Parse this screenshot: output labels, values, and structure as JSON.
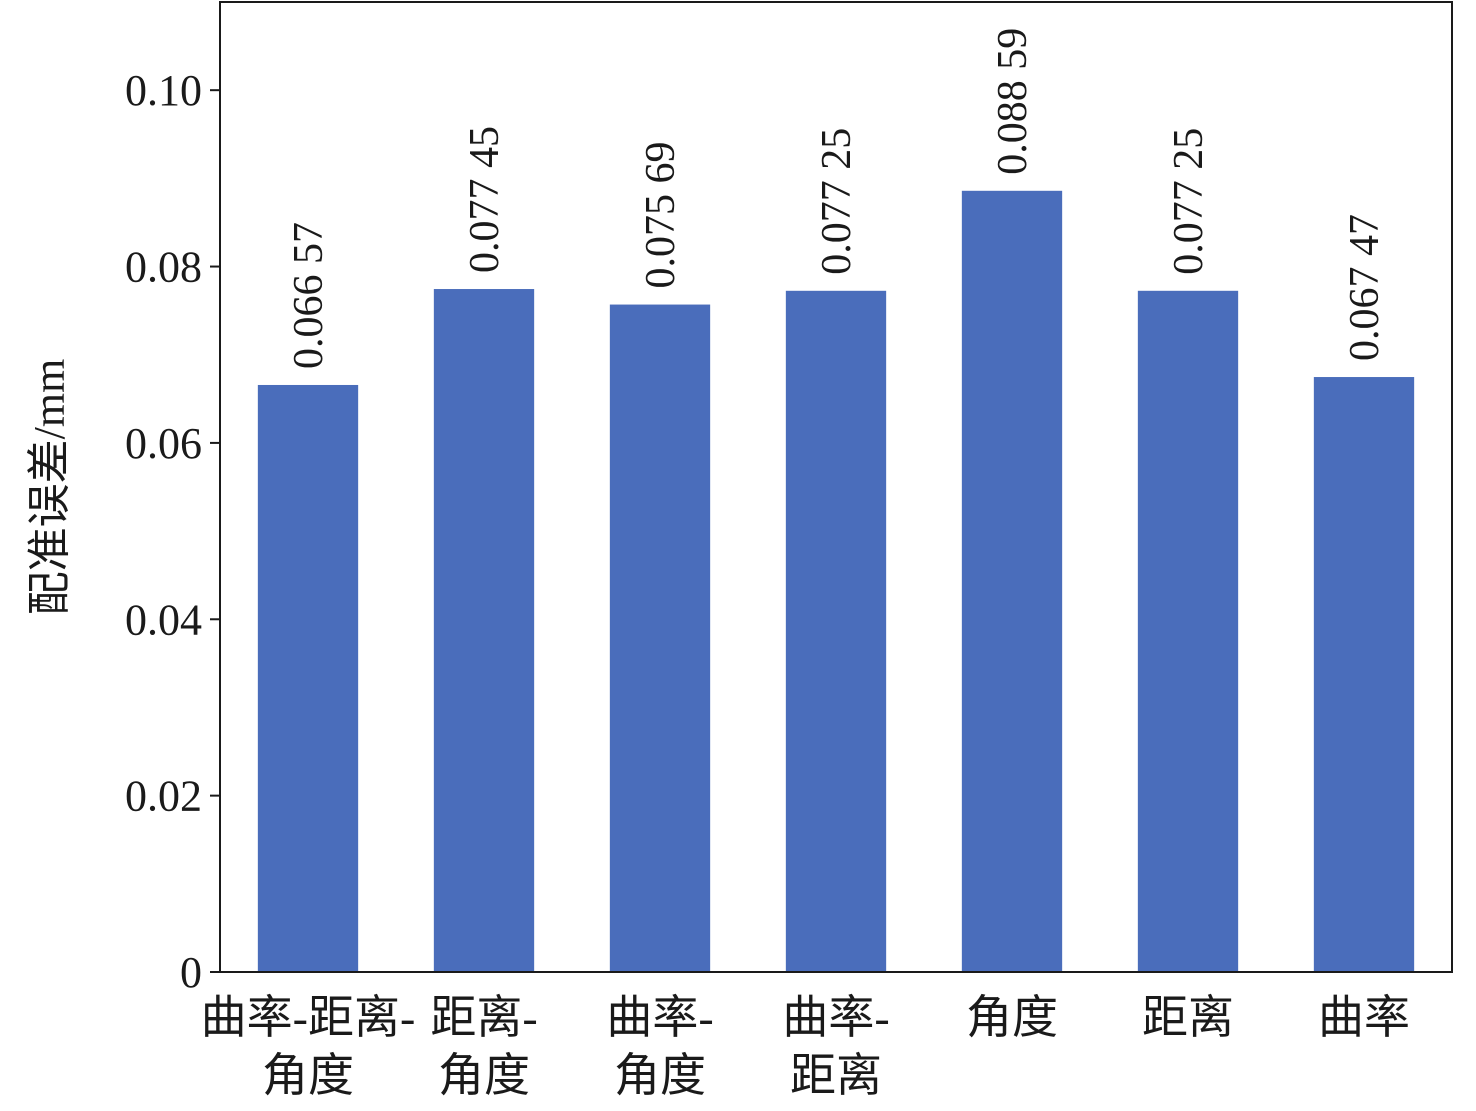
{
  "chart_data": {
    "type": "bar",
    "title": "",
    "xlabel": "",
    "ylabel": "配准误差/mm",
    "ylim": [
      0,
      0.11
    ],
    "yticks": [
      0,
      0.02,
      0.04,
      0.06,
      0.08,
      0.1
    ],
    "ytick_labels": [
      "0",
      "0.02",
      "0.04",
      "0.06",
      "0.08",
      "0.10"
    ],
    "categories": [
      [
        "曲率-距离-",
        "角度"
      ],
      [
        "距离-",
        "角度"
      ],
      [
        "曲率-",
        "角度"
      ],
      [
        "曲率-",
        "距离"
      ],
      [
        "角度"
      ],
      [
        "距离"
      ],
      [
        "曲率"
      ]
    ],
    "values": [
      0.06657,
      0.07745,
      0.07569,
      0.07725,
      0.08859,
      0.07725,
      0.06747
    ],
    "data_labels": [
      "0.066 57",
      "0.077 45",
      "0.075 69",
      "0.077 25",
      "0.088 59",
      "0.077 25",
      "0.067 47"
    ],
    "bar_color": "#4a6dbb",
    "grid": false,
    "legend": "none"
  }
}
